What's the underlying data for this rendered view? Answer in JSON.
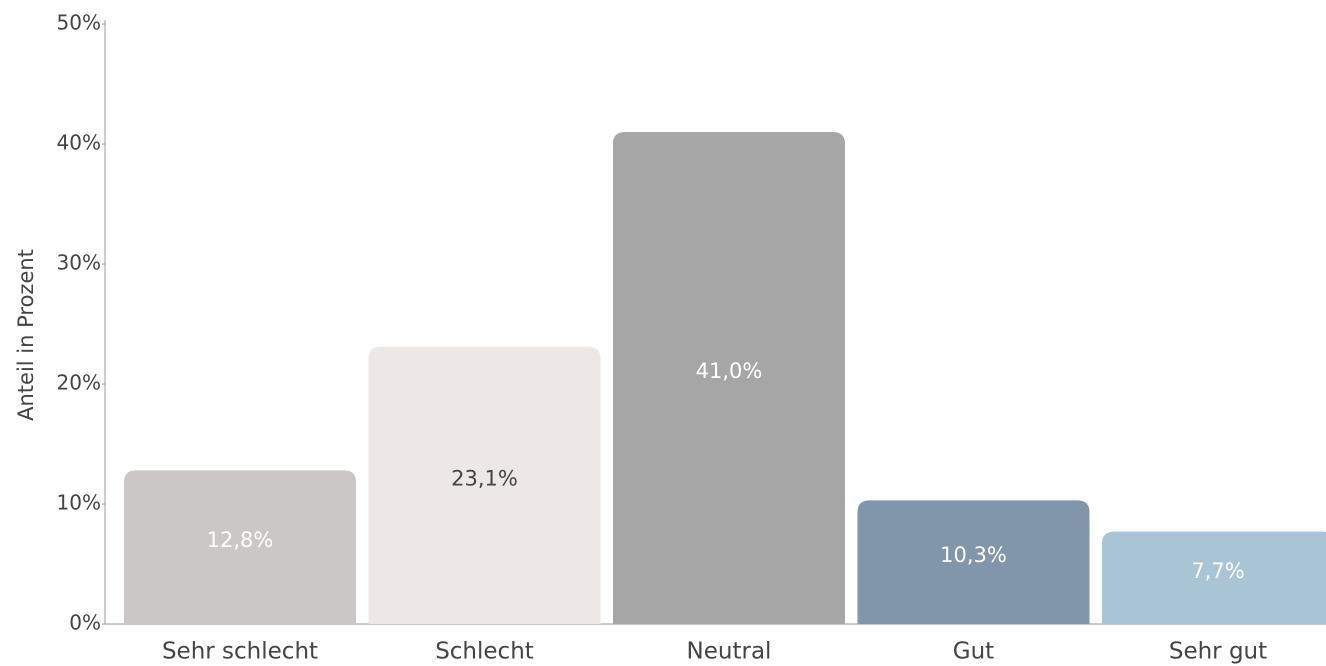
{
  "chart_data": {
    "type": "bar",
    "y_axis_label": "Anteil in Prozent",
    "categories": [
      "Sehr schlecht",
      "Schlecht",
      "Neutral",
      "Gut",
      "Sehr gut"
    ],
    "values": [
      12.8,
      23.1,
      41.0,
      10.3,
      7.7
    ],
    "value_labels": [
      "12,8%",
      "23,1%",
      "41,0%",
      "10,3%",
      "7,7%"
    ],
    "colors": [
      "#cbc7c6",
      "#ede8e5",
      "#a6a6a6",
      "#8296ab",
      "#a9c4d4"
    ],
    "value_label_colors": [
      "#ffffff",
      "#444444",
      "#ffffff",
      "#ffffff",
      "#ffffff"
    ],
    "ylim": [
      0,
      50
    ],
    "yticks": [
      {
        "value": 0,
        "label": "0%"
      },
      {
        "value": 10,
        "label": "10%"
      },
      {
        "value": 20,
        "label": "20%"
      },
      {
        "value": 30,
        "label": "30%"
      },
      {
        "value": 40,
        "label": "40%"
      },
      {
        "value": 50,
        "label": "50%"
      }
    ],
    "grid": false
  }
}
